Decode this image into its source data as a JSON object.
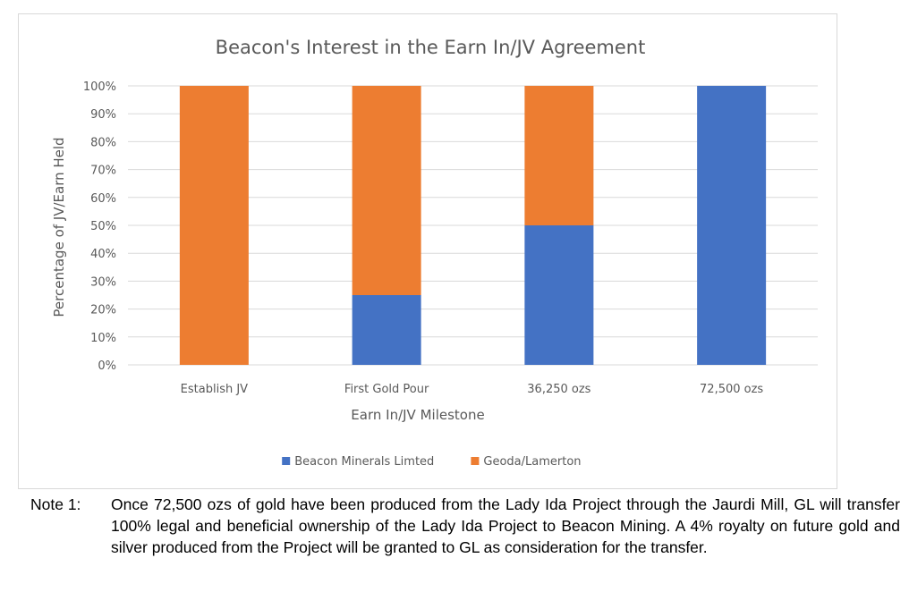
{
  "chart_data": {
    "type": "bar",
    "stacked": true,
    "title": "Beacon's Interest in the Earn In/JV Agreement",
    "xlabel": "Earn In/JV Milestone",
    "ylabel": "Percentage of JV/Earn Held",
    "ylim": [
      0,
      100
    ],
    "y_ticks": [
      "0%",
      "10%",
      "20%",
      "30%",
      "40%",
      "50%",
      "60%",
      "70%",
      "80%",
      "90%",
      "100%"
    ],
    "categories": [
      "Establish JV",
      "First Gold Pour",
      "36,250 ozs",
      "72,500 ozs"
    ],
    "series": [
      {
        "name": "Beacon Minerals Limted",
        "color": "#4472c4",
        "values": [
          0,
          25,
          50,
          100
        ]
      },
      {
        "name": "Geoda/Lamerton",
        "color": "#ed7d31",
        "values": [
          100,
          75,
          50,
          0
        ]
      }
    ],
    "grid": true,
    "legend_position": "bottom"
  },
  "note": {
    "label": "Note 1:",
    "text": "Once 72,500 ozs of gold have been produced from the Lady Ida Project through the Jaurdi Mill, GL will transfer 100% legal and beneficial ownership of the Lady Ida Project to Beacon Mining. A 4% royalty on future gold and silver produced from the Project will be granted to GL as consideration for the transfer."
  }
}
